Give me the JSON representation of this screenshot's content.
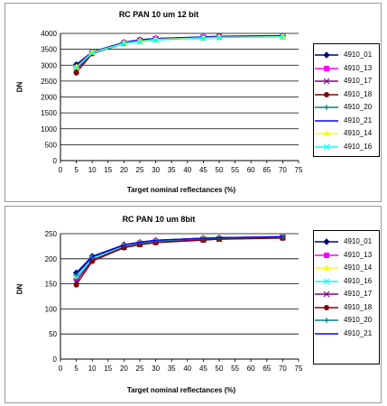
{
  "chart_data": [
    {
      "type": "line",
      "title": "RC PAN 10 um 12 bit",
      "xlabel": "Target nominal reflectances (%)",
      "ylabel": "DN",
      "xlim": [
        0,
        75
      ],
      "ylim": [
        0,
        4000
      ],
      "xticks": [
        "0",
        "5",
        "10",
        "15",
        "20",
        "25",
        "30",
        "35",
        "40",
        "45",
        "50",
        "55",
        "60",
        "65",
        "70",
        "75"
      ],
      "yticks": [
        "0",
        "500",
        "1000",
        "1500",
        "2000",
        "2500",
        "3000",
        "3500",
        "4000"
      ],
      "x": [
        5,
        10,
        20,
        25,
        30,
        45,
        50,
        70
      ],
      "grid": "horizontal",
      "legend": "right",
      "series": [
        {
          "name": "4910_01",
          "color": "#000080",
          "marker": "diamond",
          "values": [
            3020,
            3420,
            3720,
            3800,
            3840,
            3890,
            3910,
            3930
          ]
        },
        {
          "name": "4910_13",
          "color": "#ff00ff",
          "marker": "square",
          "values": [
            2900,
            3390,
            3700,
            3780,
            3830,
            3880,
            3900,
            3920
          ]
        },
        {
          "name": "4910_17",
          "color": "#800080",
          "marker": "x",
          "values": [
            2850,
            3380,
            3690,
            3770,
            3820,
            3870,
            3890,
            3910
          ]
        },
        {
          "name": "4910_18",
          "color": "#800000",
          "marker": "circle",
          "values": [
            2760,
            3360,
            3680,
            3760,
            3810,
            3860,
            3880,
            3900
          ]
        },
        {
          "name": "4910_20",
          "color": "#008080",
          "marker": "plus",
          "values": [
            2960,
            3400,
            3710,
            3790,
            3830,
            3880,
            3900,
            3920
          ]
        },
        {
          "name": "4910_21",
          "color": "#0000ff",
          "marker": "none",
          "values": [
            3000,
            3410,
            3715,
            3795,
            3835,
            3885,
            3905,
            3925
          ]
        },
        {
          "name": "4910_14",
          "color": "#ffff00",
          "marker": "triangle",
          "values": [
            2940,
            3400,
            3690,
            3760,
            3810,
            3860,
            3880,
            3900
          ]
        },
        {
          "name": "4910_16",
          "color": "#00ffff",
          "marker": "x",
          "values": [
            2920,
            3380,
            3680,
            3740,
            3790,
            3850,
            3870,
            3890
          ]
        }
      ]
    },
    {
      "type": "line",
      "title": "RC PAN 10 um 8bit",
      "xlabel": "Target nominal reflectances (%)",
      "ylabel": "DN",
      "xlim": [
        0,
        75
      ],
      "ylim": [
        0,
        250
      ],
      "xticks": [
        "0",
        "5",
        "10",
        "15",
        "20",
        "25",
        "30",
        "35",
        "40",
        "45",
        "50",
        "55",
        "60",
        "65",
        "70",
        "75"
      ],
      "yticks": [
        "0",
        "50",
        "100",
        "150",
        "200",
        "250"
      ],
      "x": [
        5,
        10,
        20,
        25,
        30,
        45,
        50,
        70
      ],
      "grid": "horizontal",
      "legend": "right",
      "series": [
        {
          "name": "4910_01",
          "color": "#000080",
          "marker": "diamond",
          "values": [
            172,
            205,
            228,
            233,
            237,
            241,
            242,
            244
          ]
        },
        {
          "name": "4910_13",
          "color": "#ff00ff",
          "marker": "square",
          "values": [
            160,
            200,
            225,
            231,
            235,
            239,
            240,
            243
          ]
        },
        {
          "name": "4910_14",
          "color": "#ffff00",
          "marker": "triangle",
          "values": [
            165,
            202,
            226,
            232,
            236,
            240,
            241,
            243
          ]
        },
        {
          "name": "4910_16",
          "color": "#00ffff",
          "marker": "x",
          "values": [
            162,
            200,
            224,
            230,
            234,
            238,
            240,
            242
          ]
        },
        {
          "name": "4910_17",
          "color": "#800080",
          "marker": "x",
          "values": [
            155,
            197,
            223,
            229,
            233,
            238,
            239,
            242
          ]
        },
        {
          "name": "4910_18",
          "color": "#800000",
          "marker": "circle",
          "values": [
            148,
            195,
            222,
            228,
            232,
            237,
            239,
            241
          ]
        },
        {
          "name": "4910_20",
          "color": "#008080",
          "marker": "plus",
          "values": [
            168,
            203,
            227,
            232,
            236,
            240,
            241,
            243
          ]
        },
        {
          "name": "4910_21",
          "color": "#0000ff",
          "marker": "none",
          "values": [
            170,
            204,
            227,
            233,
            237,
            241,
            242,
            244
          ]
        }
      ]
    }
  ]
}
